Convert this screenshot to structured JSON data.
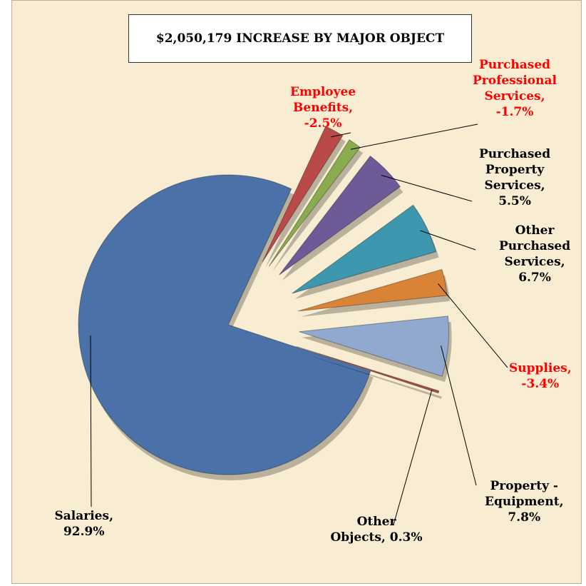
{
  "chart_data": {
    "type": "pie",
    "title": "$2,050,179 INCREASE BY MAJOR OBJECT",
    "values": [
      92.9,
      -2.5,
      -1.7,
      5.5,
      6.7,
      -3.4,
      7.8,
      0.3
    ],
    "value_labels": [
      "Salaries,\n92.9%",
      "Employee\nBenefits,\n-2.5%",
      "Purchased\nProfessional\nServices,\n-1.7%",
      "Purchased\nProperty\nServices,\n5.5%",
      "Other\nPurchased\nServices,\n6.7%",
      "Supplies,\n-3.4%",
      "Property -\nEquipment,\n7.8%",
      "Other\nObjects, 0.3%"
    ],
    "colors": [
      "#4a72a8",
      "#b94a48",
      "#8aab4e",
      "#6e5a96",
      "#3d97ae",
      "#d98336",
      "#91a8cf",
      "#a64d4d"
    ],
    "label_color": "#000000",
    "negative_label_color": "#ff0000"
  }
}
